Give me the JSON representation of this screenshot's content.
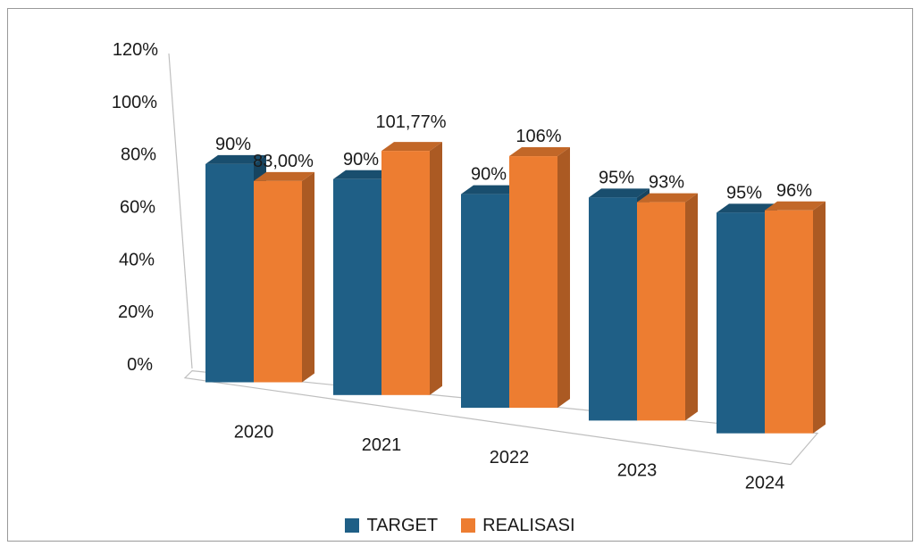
{
  "chart_data": {
    "type": "bar",
    "title": "",
    "xlabel": "",
    "ylabel": "",
    "ylim": [
      0,
      120
    ],
    "y_ticks": [
      "0%",
      "20%",
      "40%",
      "60%",
      "80%",
      "100%",
      "120%"
    ],
    "categories": [
      "2020",
      "2021",
      "2022",
      "2023",
      "2024"
    ],
    "series": [
      {
        "name": "TARGET",
        "color": "#1f5f86",
        "values": [
          90,
          90,
          90,
          95,
          95
        ],
        "labels": [
          "90%",
          "90%",
          "90%",
          "95%",
          "95%"
        ]
      },
      {
        "name": "REALISASI",
        "color": "#ed7d31",
        "values": [
          83,
          101.77,
          106,
          93,
          96
        ],
        "labels": [
          "83,00%",
          "101,77%",
          "106%",
          "93%",
          "96%"
        ]
      }
    ],
    "legend_position": "bottom",
    "grid": false,
    "style": "3d-perspective"
  }
}
